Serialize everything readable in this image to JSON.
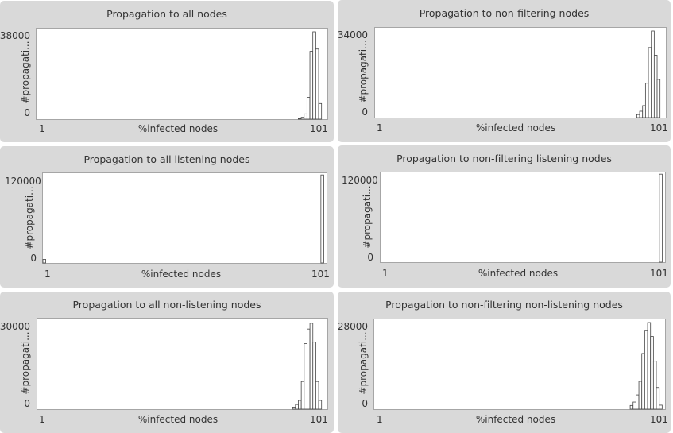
{
  "chart_data": [
    {
      "type": "bar",
      "title": "Propagation to all nodes",
      "xlabel": "%infected nodes",
      "ylabel": "#propagati...",
      "xlim": [
        1,
        101
      ],
      "ylim": [
        0,
        38000
      ],
      "x_tick_labels": [
        "1",
        "101"
      ],
      "y_tick_labels": [
        "0",
        "38000"
      ],
      "bins": [
        91,
        92,
        93,
        94,
        95,
        96,
        97,
        98
      ],
      "values": [
        300,
        800,
        2300,
        9500,
        29500,
        38000,
        30500,
        6800
      ]
    },
    {
      "type": "bar",
      "title": "Propagation to non-filtering nodes",
      "xlabel": "%infected nodes",
      "ylabel": "#propagati...",
      "xlim": [
        1,
        101
      ],
      "ylim": [
        0,
        34000
      ],
      "x_tick_labels": [
        "1",
        "101"
      ],
      "y_tick_labels": [
        "0",
        "34000"
      ],
      "bins": [
        91,
        92,
        93,
        94,
        95,
        96,
        97,
        98
      ],
      "values": [
        1200,
        2500,
        4700,
        13500,
        27500,
        34000,
        24500,
        15000
      ]
    },
    {
      "type": "bar",
      "title": "Propagation to all listening nodes",
      "xlabel": "%infected nodes",
      "ylabel": "#propagati...",
      "xlim": [
        1,
        101
      ],
      "ylim": [
        0,
        120000
      ],
      "x_tick_labels": [
        "1",
        "101"
      ],
      "y_tick_labels": [
        "0",
        "120000"
      ],
      "bins": [
        1,
        99
      ],
      "values": [
        5000,
        122000
      ]
    },
    {
      "type": "bar",
      "title": "Propagation to non-filtering listening nodes",
      "xlabel": "%infected nodes",
      "ylabel": "#propagati...",
      "xlim": [
        1,
        101
      ],
      "ylim": [
        0,
        120000
      ],
      "x_tick_labels": [
        "1",
        "101"
      ],
      "y_tick_labels": [
        "0",
        "120000"
      ],
      "bins": [
        99
      ],
      "values": [
        122000
      ]
    },
    {
      "type": "bar",
      "title": "Propagation to all non-listening nodes",
      "xlabel": "%infected nodes",
      "ylabel": "#propagati...",
      "xlim": [
        1,
        101
      ],
      "ylim": [
        0,
        30000
      ],
      "x_tick_labels": [
        "1",
        "101"
      ],
      "y_tick_labels": [
        "0",
        "30000"
      ],
      "bins": [
        89,
        90,
        91,
        92,
        93,
        94,
        95,
        96,
        97,
        98
      ],
      "values": [
        700,
        1600,
        3000,
        9500,
        22500,
        27500,
        29500,
        23000,
        9500,
        3000
      ]
    },
    {
      "type": "bar",
      "title": "Propagation to non-filtering non-listening nodes",
      "xlabel": "%infected nodes",
      "ylabel": "#propagati...",
      "xlim": [
        1,
        101
      ],
      "ylim": [
        0,
        28000
      ],
      "x_tick_labels": [
        "1",
        "101"
      ],
      "y_tick_labels": [
        "0",
        "28000"
      ],
      "bins": [
        89,
        90,
        91,
        92,
        93,
        94,
        95,
        96,
        97,
        98,
        99
      ],
      "values": [
        1200,
        2300,
        4600,
        9000,
        18000,
        25500,
        28000,
        23500,
        15500,
        7000,
        1300
      ]
    }
  ]
}
